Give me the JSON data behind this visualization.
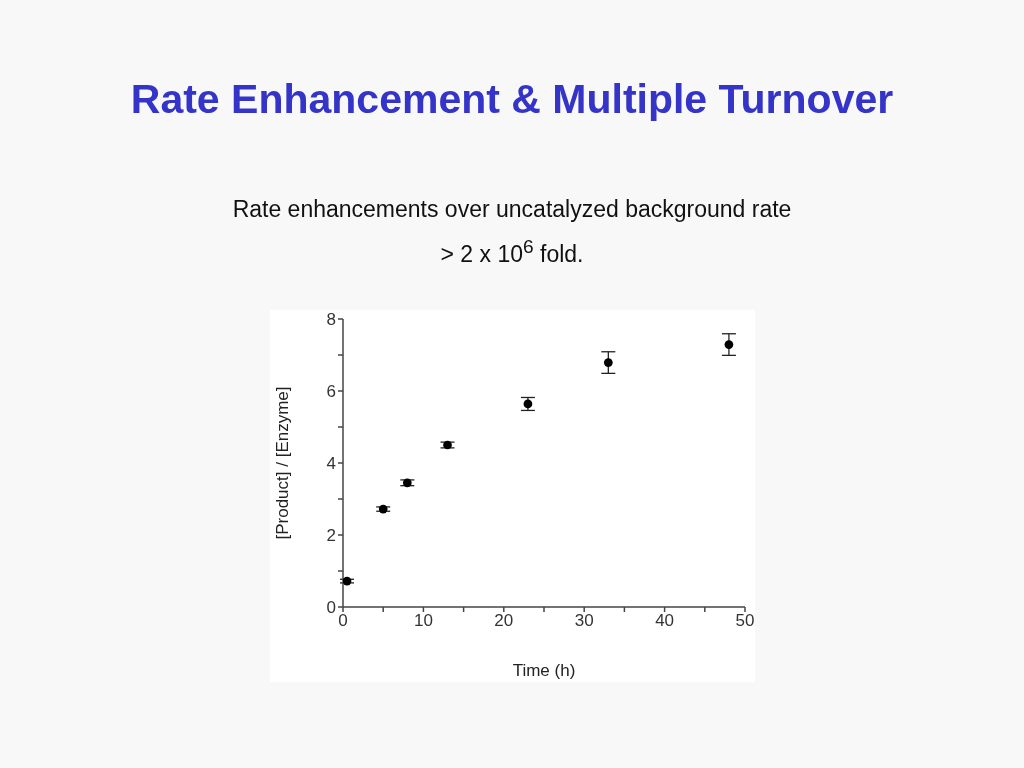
{
  "chart_data": {
    "type": "scatter",
    "title": "Rate Enhancement & Multiple Turnover",
    "subtitle": "Rate enhancements over uncatalyzed background rate\n> 2 x 10$^{6}$ fold.",
    "xlabel": "Time (h)",
    "ylabel": "[Product] / [Enzyme]",
    "x": [
      0.5,
      5,
      8,
      13,
      23,
      33,
      48
    ],
    "series": [
      {
        "color": "#000000",
        "values": [
          0.72,
          2.72,
          3.45,
          4.5,
          5.64,
          6.79,
          7.29
        ],
        "errors": [
          0.05,
          0.06,
          0.08,
          0.08,
          0.18,
          0.3,
          0.3
        ]
      }
    ],
    "xlim": [
      0,
      50
    ],
    "xticks": [
      0,
      {
        "value": 5,
        "label": null
      },
      10,
      {
        "value": 15,
        "label": null
      },
      20,
      {
        "value": 25,
        "label": null
      },
      30,
      {
        "value": 35,
        "label": null
      },
      40,
      {
        "value": 45,
        "label": null
      },
      50
    ],
    "ylim": [
      0,
      8
    ],
    "yticks": [
      0,
      {
        "value": 1,
        "label": null
      },
      2,
      {
        "value": 3,
        "label": null
      },
      4,
      {
        "value": 5,
        "label": null
      },
      6,
      {
        "value": 7,
        "label": null
      },
      8
    ],
    "marker": "circle"
  }
}
